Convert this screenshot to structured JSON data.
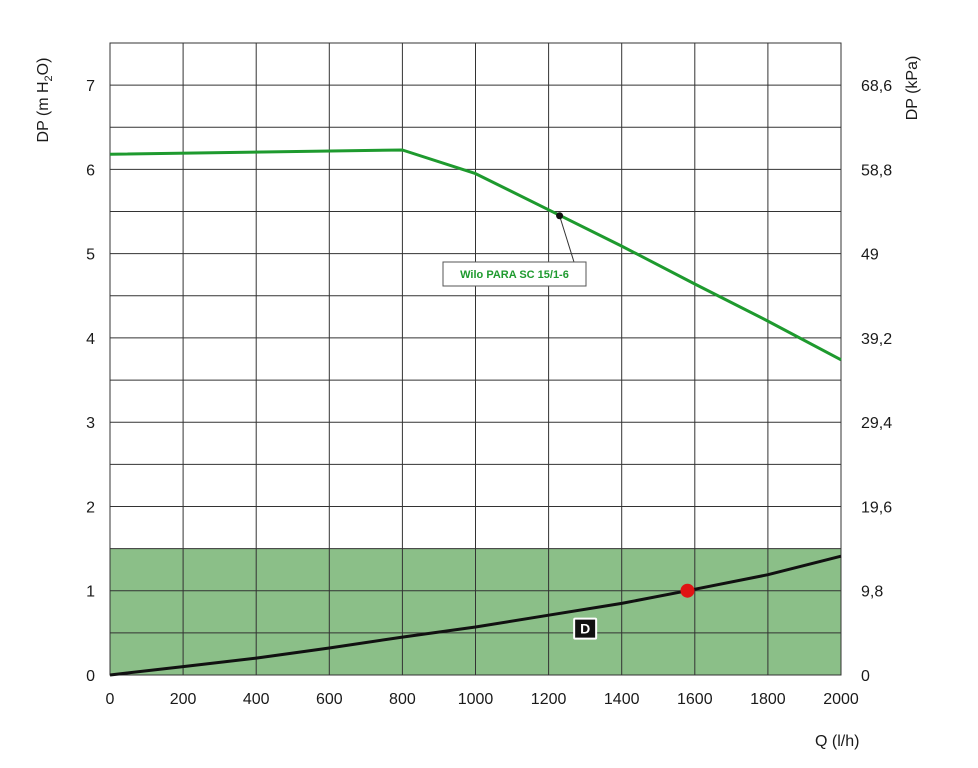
{
  "chart_data": {
    "type": "line",
    "xlabel": "Q (l/h)",
    "ylabel_left": {
      "main": "DP (m H",
      "sub": "2",
      "tail": "O)"
    },
    "ylabel_right": "DP (kPa)",
    "xlim": [
      0,
      2000
    ],
    "ylim": [
      0,
      7.5
    ],
    "grid": true,
    "x_ticks": [
      0,
      200,
      400,
      600,
      800,
      1000,
      1200,
      1400,
      1600,
      1800,
      2000
    ],
    "y_ticks_left": [
      0,
      1,
      2,
      3,
      4,
      5,
      6,
      7
    ],
    "y_ticks_right": [
      {
        "value": 0,
        "label": "0"
      },
      {
        "value": 1,
        "label": "9,8"
      },
      {
        "value": 2,
        "label": "19,6"
      },
      {
        "value": 3,
        "label": "29,4"
      },
      {
        "value": 4,
        "label": "39,2"
      },
      {
        "value": 5,
        "label": "49"
      },
      {
        "value": 6,
        "label": "58,8"
      },
      {
        "value": 7,
        "label": "68,6"
      }
    ],
    "series": [
      {
        "name": "Wilo PARA SC 15/1-6",
        "color": "#1e9a2e",
        "x": [
          0,
          800,
          1000,
          1200,
          1400,
          1600,
          1800,
          2000
        ],
        "y": [
          6.18,
          6.23,
          5.95,
          5.52,
          5.09,
          4.64,
          4.2,
          3.74
        ]
      },
      {
        "name": "",
        "color": "#111111",
        "x": [
          0,
          200,
          400,
          600,
          800,
          1000,
          1200,
          1400,
          1580,
          1800,
          2000
        ],
        "y": [
          0,
          0.1,
          0.2,
          0.32,
          0.45,
          0.57,
          0.71,
          0.85,
          1.0,
          1.19,
          1.41
        ]
      }
    ],
    "shaded_region": {
      "y_from": 0,
      "y_to": 1.5,
      "color": "#8bbf88"
    },
    "operating_point": {
      "x": 1580,
      "y": 1.0,
      "color": "#e01414"
    },
    "callout": {
      "label": "Wilo PARA SC 15/1-6",
      "anchor_x": 1230,
      "anchor_y": 5.45
    },
    "region_label": {
      "label": "D",
      "x": 1300,
      "y": 0.55
    }
  }
}
